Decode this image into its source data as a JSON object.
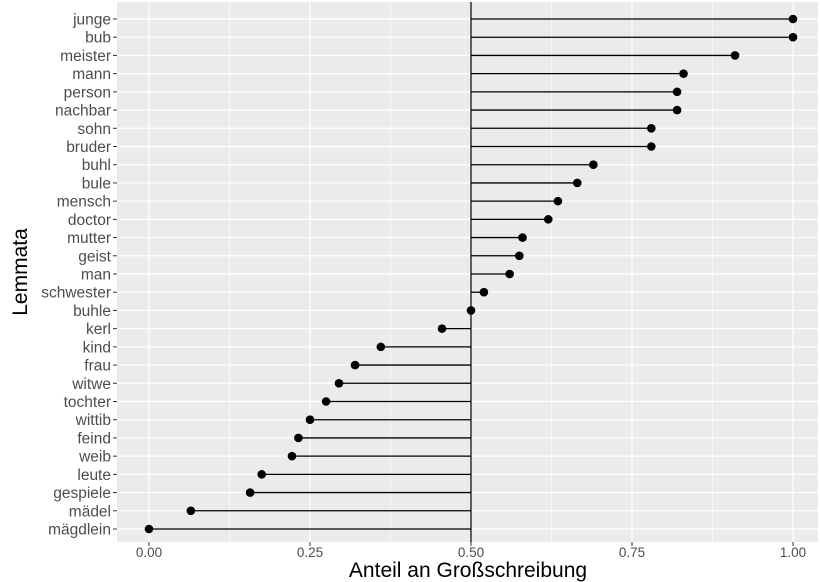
{
  "chart_data": {
    "type": "lollipop",
    "title": "",
    "xlabel": "Anteil an Großschreibung",
    "ylabel": "Lemmata",
    "xlim": [
      -0.05,
      1.04
    ],
    "baseline": 0.5,
    "x_ticks": [
      {
        "value": 0.0,
        "label": "0.00"
      },
      {
        "value": 0.25,
        "label": "0.25"
      },
      {
        "value": 0.5,
        "label": "0.50"
      },
      {
        "value": 0.75,
        "label": "0.75"
      },
      {
        "value": 1.0,
        "label": "1.00"
      }
    ],
    "grid": true,
    "points": [
      {
        "label": "junge",
        "value": 1.0
      },
      {
        "label": "bub",
        "value": 1.0
      },
      {
        "label": "meister",
        "value": 0.91
      },
      {
        "label": "mann",
        "value": 0.83
      },
      {
        "label": "person",
        "value": 0.82
      },
      {
        "label": "nachbar",
        "value": 0.82
      },
      {
        "label": "sohn",
        "value": 0.78
      },
      {
        "label": "bruder",
        "value": 0.78
      },
      {
        "label": "buhl",
        "value": 0.69
      },
      {
        "label": "bule",
        "value": 0.665
      },
      {
        "label": "mensch",
        "value": 0.635
      },
      {
        "label": "doctor",
        "value": 0.62
      },
      {
        "label": "mutter",
        "value": 0.58
      },
      {
        "label": "geist",
        "value": 0.575
      },
      {
        "label": "man",
        "value": 0.56
      },
      {
        "label": "schwester",
        "value": 0.52
      },
      {
        "label": "buhle",
        "value": 0.5
      },
      {
        "label": "kerl",
        "value": 0.455
      },
      {
        "label": "kind",
        "value": 0.36
      },
      {
        "label": "frau",
        "value": 0.32
      },
      {
        "label": "witwe",
        "value": 0.295
      },
      {
        "label": "tochter",
        "value": 0.275
      },
      {
        "label": "wittib",
        "value": 0.25
      },
      {
        "label": "feind",
        "value": 0.232
      },
      {
        "label": "weib",
        "value": 0.222
      },
      {
        "label": "leute",
        "value": 0.175
      },
      {
        "label": "gespiele",
        "value": 0.157
      },
      {
        "label": "mädel",
        "value": 0.065
      },
      {
        "label": "mägdlein",
        "value": 0.0
      }
    ],
    "colors": {
      "panel": "#ebebeb",
      "grid": "#ffffff",
      "point": "#000000",
      "segment": "#000000"
    }
  }
}
